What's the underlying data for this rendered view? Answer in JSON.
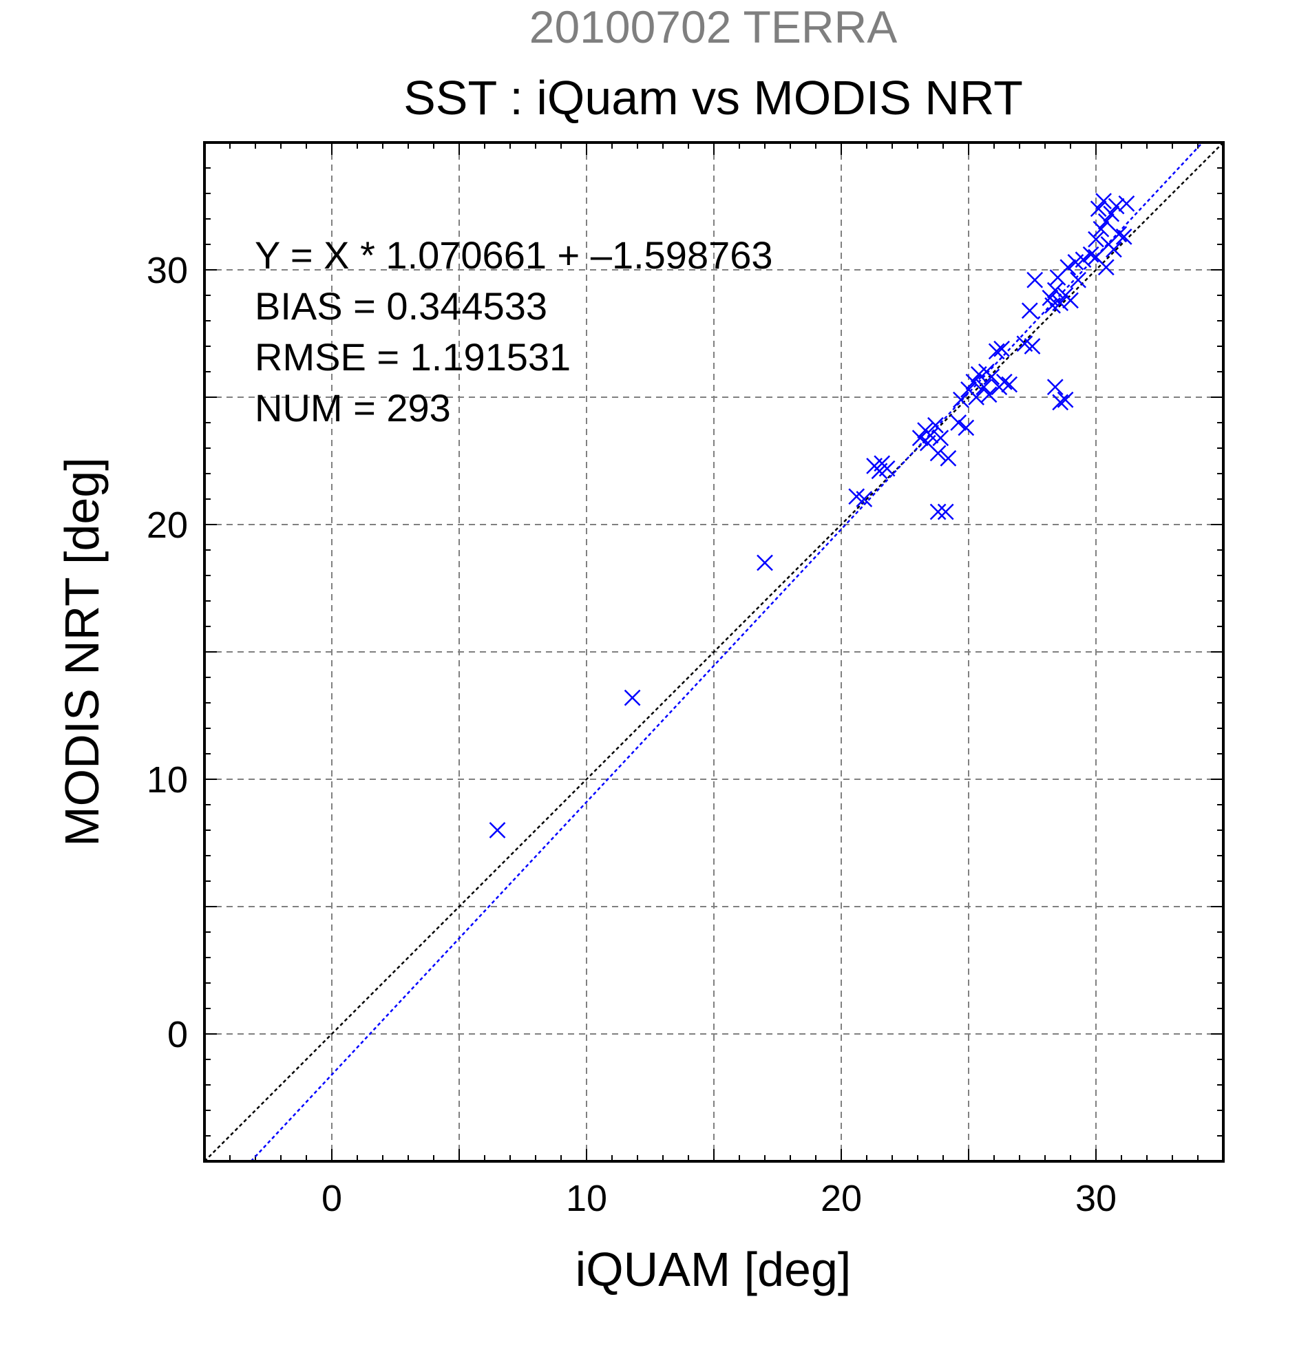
{
  "chart_data": {
    "type": "scatter",
    "supertitle": "20100702 TERRA",
    "title": "SST : iQuam vs MODIS NRT",
    "xlabel": "iQUAM [deg]",
    "ylabel": "MODIS NRT [deg]",
    "xlim": [
      -5,
      35
    ],
    "ylim": [
      -5,
      35
    ],
    "xticks": [
      0,
      10,
      20,
      30
    ],
    "yticks": [
      0,
      10,
      20,
      30
    ],
    "grid": true,
    "stats": [
      "Y = X * 1.070661 + –1.598763",
      "BIAS = 0.344533",
      "RMSE = 1.191531",
      "NUM = 293"
    ],
    "reference_line": {
      "slope": 1,
      "intercept": 0,
      "color": "#000000"
    },
    "fit_line": {
      "slope": 1.070661,
      "intercept": -1.598763,
      "color": "#0000ff"
    },
    "marker_color": "#0000ff",
    "series": [
      {
        "points": [
          [
            6.5,
            8.0
          ],
          [
            11.8,
            13.2
          ],
          [
            17.0,
            18.5
          ],
          [
            20.6,
            21.1
          ],
          [
            20.9,
            21.0
          ],
          [
            21.3,
            22.3
          ],
          [
            21.5,
            22.1
          ],
          [
            21.8,
            22.2
          ],
          [
            21.6,
            22.4
          ],
          [
            23.1,
            23.4
          ],
          [
            23.3,
            23.7
          ],
          [
            23.5,
            23.5
          ],
          [
            23.7,
            23.9
          ],
          [
            23.9,
            23.4
          ],
          [
            23.4,
            23.2
          ],
          [
            23.8,
            22.8
          ],
          [
            24.2,
            22.6
          ],
          [
            23.8,
            20.5
          ],
          [
            24.1,
            20.5
          ],
          [
            24.6,
            24.0
          ],
          [
            24.9,
            23.8
          ],
          [
            24.7,
            24.9
          ],
          [
            25.0,
            25.3
          ],
          [
            25.2,
            25.6
          ],
          [
            25.4,
            25.9
          ],
          [
            25.6,
            25.4
          ],
          [
            25.8,
            25.1
          ],
          [
            25.9,
            25.8
          ],
          [
            26.2,
            25.4
          ],
          [
            26.4,
            25.6
          ],
          [
            26.6,
            25.5
          ],
          [
            25.3,
            25.0
          ],
          [
            25.7,
            26.0
          ],
          [
            26.1,
            26.8
          ],
          [
            26.3,
            26.9
          ],
          [
            27.2,
            27.1
          ],
          [
            27.5,
            27.0
          ],
          [
            27.6,
            29.6
          ],
          [
            27.4,
            28.4
          ],
          [
            28.2,
            28.9
          ],
          [
            28.4,
            29.2
          ],
          [
            28.6,
            28.7
          ],
          [
            28.8,
            29.0
          ],
          [
            29.0,
            28.8
          ],
          [
            28.3,
            28.6
          ],
          [
            28.5,
            29.7
          ],
          [
            28.9,
            30.1
          ],
          [
            29.2,
            30.3
          ],
          [
            29.5,
            30.4
          ],
          [
            29.8,
            30.6
          ],
          [
            29.3,
            29.6
          ],
          [
            28.4,
            25.4
          ],
          [
            28.6,
            24.8
          ],
          [
            28.8,
            24.9
          ],
          [
            30.0,
            31.2
          ],
          [
            30.2,
            31.6
          ],
          [
            30.4,
            31.9
          ],
          [
            30.6,
            32.2
          ],
          [
            30.1,
            32.4
          ],
          [
            30.3,
            32.7
          ],
          [
            30.5,
            31.0
          ],
          [
            30.7,
            30.8
          ],
          [
            30.9,
            31.4
          ],
          [
            31.2,
            32.6
          ],
          [
            31.1,
            31.3
          ],
          [
            30.4,
            30.1
          ],
          [
            30.0,
            30.5
          ],
          [
            30.8,
            32.5
          ]
        ]
      }
    ]
  }
}
